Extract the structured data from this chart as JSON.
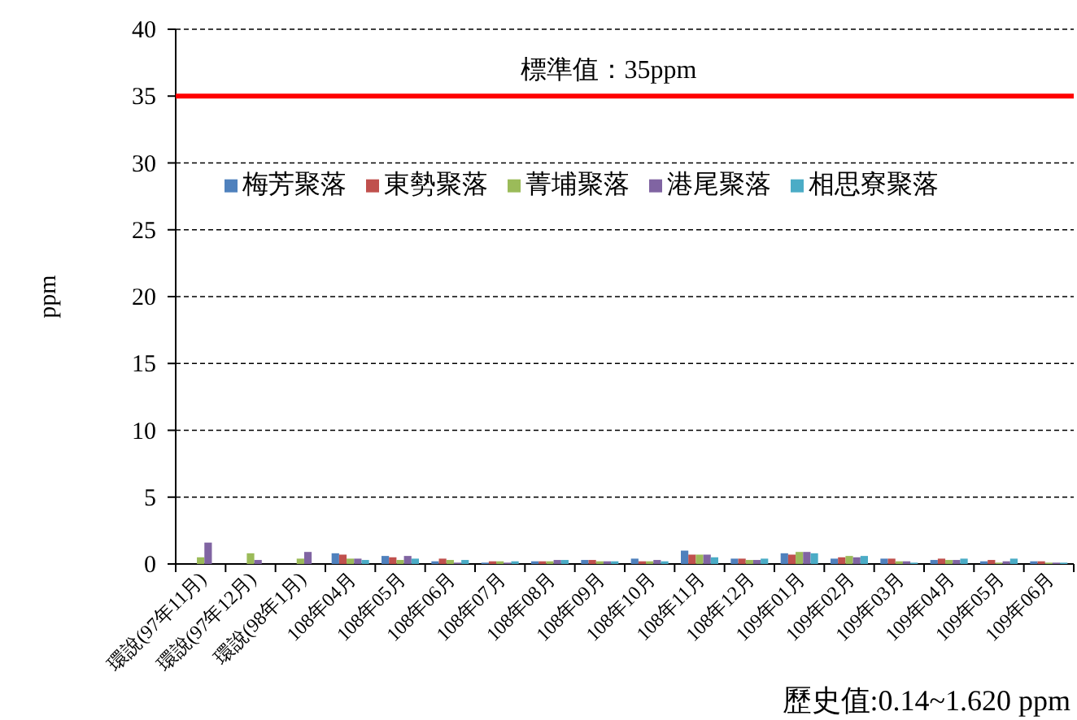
{
  "chart_data": {
    "type": "bar",
    "ylabel": "ppm",
    "categories": [
      "環說(97年11月)",
      "環說(97年12月)",
      "環說(98年1月)",
      "108年04月",
      "108年05月",
      "108年06月",
      "108年07月",
      "108年08月",
      "108年09月",
      "108年10月",
      "108年11月",
      "108年12月",
      "109年01月",
      "109年02月",
      "109年03月",
      "109年04月",
      "109年05月",
      "109年06月"
    ],
    "series": [
      {
        "name": "梅芳聚落",
        "color": "#4f81bd",
        "values": [
          null,
          null,
          null,
          0.8,
          0.6,
          0.2,
          0.1,
          0.2,
          0.3,
          0.4,
          1.0,
          0.4,
          0.8,
          0.4,
          0.4,
          0.3,
          0.2,
          0.2
        ]
      },
      {
        "name": "東勢聚落",
        "color": "#c0504d",
        "values": [
          null,
          null,
          null,
          0.7,
          0.5,
          0.4,
          0.2,
          0.2,
          0.3,
          0.2,
          0.7,
          0.4,
          0.7,
          0.5,
          0.4,
          0.4,
          0.3,
          0.2
        ]
      },
      {
        "name": "菁埔聚落",
        "color": "#9bbb59",
        "values": [
          0.5,
          0.8,
          0.4,
          0.4,
          0.3,
          0.3,
          0.2,
          0.2,
          0.2,
          0.2,
          0.7,
          0.3,
          0.9,
          0.6,
          0.2,
          0.3,
          0.1,
          0.1
        ]
      },
      {
        "name": "港尾聚落",
        "color": "#8064a2",
        "values": [
          1.6,
          0.3,
          0.9,
          0.4,
          0.6,
          0.1,
          0.1,
          0.3,
          0.2,
          0.3,
          0.7,
          0.3,
          0.9,
          0.5,
          0.2,
          0.3,
          0.2,
          0.1
        ]
      },
      {
        "name": "相思寮聚落",
        "color": "#4bacc6",
        "values": [
          null,
          null,
          null,
          0.3,
          0.4,
          0.3,
          0.2,
          0.3,
          0.2,
          0.2,
          0.5,
          0.4,
          0.8,
          0.6,
          0.1,
          0.4,
          0.4,
          0.1
        ]
      }
    ],
    "ylim": [
      0,
      40
    ],
    "yticks": [
      0,
      5,
      10,
      15,
      20,
      25,
      30,
      35,
      40
    ],
    "grid": "y",
    "legend": "top",
    "ref_lines": [
      {
        "axis": "y",
        "value": 35,
        "label": "標準值：35ppm",
        "color": "#ff0000"
      }
    ],
    "annotations": [
      "歷史值:0.14~1.620 ppm"
    ]
  }
}
